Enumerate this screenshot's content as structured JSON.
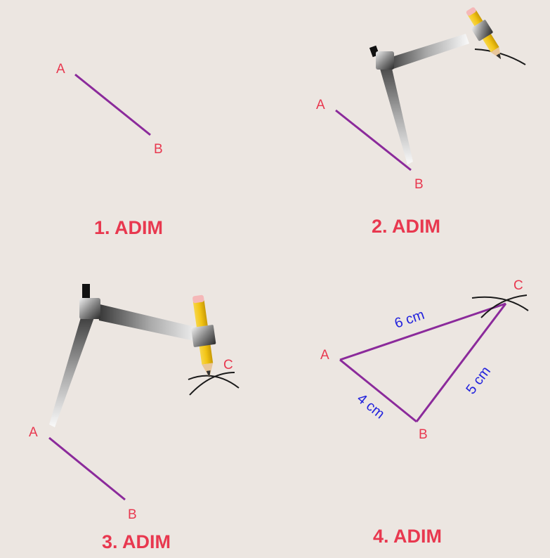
{
  "colors": {
    "background": "#ece6e1",
    "segment": "#8b2a9b",
    "point_label": "#e8384f",
    "step_title": "#e8384f",
    "length_label": "#2222dd",
    "arc": "#1a1a1a",
    "pencil": "#f2c414",
    "compass_metal": "#6e6e6e"
  },
  "steps": [
    {
      "title": "1. ADIM",
      "labels": {
        "A": "A",
        "B": "B"
      }
    },
    {
      "title": "2. ADIM",
      "labels": {
        "A": "A",
        "B": "B"
      }
    },
    {
      "title": "3. ADIM",
      "labels": {
        "A": "A",
        "B": "B",
        "C": "C"
      }
    },
    {
      "title": "4. ADIM",
      "labels": {
        "A": "A",
        "B": "B",
        "C": "C"
      },
      "lengths": {
        "AB": "4 cm",
        "BC": "5 cm",
        "AC": "6 cm"
      }
    }
  ]
}
